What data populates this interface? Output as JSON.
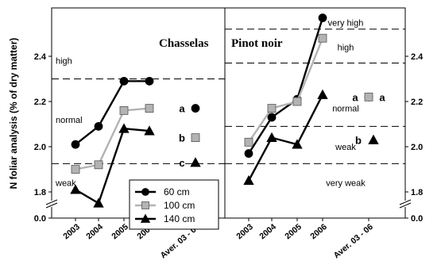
{
  "chart_data": {
    "type": "line",
    "ylabel": "N foliar analysis (% of dry matter)",
    "yticks": [
      "0.0",
      "1.8",
      "2.0",
      "2.2",
      "2.4"
    ],
    "y_break": true,
    "x": [
      "2003",
      "2004",
      "2005",
      "2006",
      "Aver. 03 - 06"
    ],
    "legend": {
      "placement": "bottom-center of left panel",
      "entries": [
        {
          "name": "60 cm",
          "marker": "circle",
          "color": "#000000"
        },
        {
          "name": "100 cm",
          "marker": "square",
          "color": "#b3b3b3"
        },
        {
          "name": "140 cm",
          "marker": "triangle",
          "color": "#000000"
        }
      ]
    },
    "panels": [
      {
        "title": "Chasselas",
        "series": [
          {
            "name": "60 cm",
            "values": [
              2.01,
              2.09,
              2.29,
              2.29
            ],
            "average": 2.17,
            "letter": "a"
          },
          {
            "name": "100 cm",
            "values": [
              1.9,
              1.92,
              2.16,
              2.17
            ],
            "average": 2.04,
            "letter": "b"
          },
          {
            "name": "140 cm",
            "values": [
              1.81,
              1.75,
              2.08,
              2.07
            ],
            "average": 1.93,
            "letter": "c"
          }
        ],
        "thresholds": [
          1.925,
          2.3
        ],
        "zones": [
          {
            "label": "high",
            "y": 2.38
          },
          {
            "label": "normal",
            "y": 2.12
          },
          {
            "label": "weak",
            "y": 1.84
          }
        ]
      },
      {
        "title": "Pinot noir",
        "series": [
          {
            "name": "60 cm",
            "values": [
              1.97,
              2.13,
              2.21,
              2.57
            ],
            "average": 2.22,
            "letter": "a"
          },
          {
            "name": "100 cm",
            "values": [
              2.02,
              2.17,
              2.2,
              2.48
            ],
            "average": 2.22,
            "letter": "a"
          },
          {
            "name": "140 cm",
            "values": [
              1.85,
              2.04,
              2.01,
              2.23
            ],
            "average": 2.03,
            "letter": "b"
          }
        ],
        "thresholds": [
          1.925,
          2.09,
          2.37,
          2.52
        ],
        "zones": [
          {
            "label": "very high",
            "y": 2.55
          },
          {
            "label": "high",
            "y": 2.44
          },
          {
            "label": "normal",
            "y": 2.17
          },
          {
            "label": "weak",
            "y": 2.0
          },
          {
            "label": "very weak",
            "y": 1.84
          }
        ]
      }
    ]
  }
}
